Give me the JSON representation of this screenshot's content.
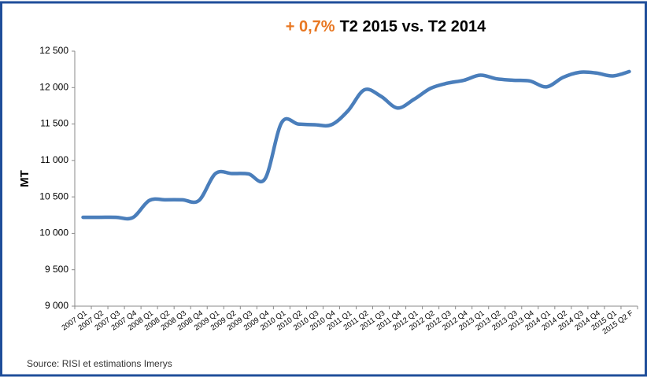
{
  "chart_data": {
    "type": "line",
    "title_highlight": "+ 0,7%",
    "title": "T2 2015 vs. T2 2014",
    "y_label": "MT",
    "source": "Source: RISI et estimations Imerys",
    "categories": [
      "2007 Q1",
      "2007 Q2",
      "2007 Q3",
      "2007 Q4",
      "2008 Q1",
      "2008 Q2",
      "2008 Q3",
      "2008 Q4",
      "2009 Q1",
      "2009 Q2",
      "2009 Q3",
      "2009 Q4",
      "2010 Q1",
      "2010 Q2",
      "2010 Q3",
      "2010 Q4",
      "2011 Q1",
      "2011 Q2",
      "2011 Q3",
      "2011 Q4",
      "2012 Q1",
      "2012 Q2",
      "2012 Q3",
      "2012 Q4",
      "2013 Q1",
      "2013 Q2",
      "2013 Q3",
      "2013 Q4",
      "2014 Q1",
      "2014 Q2",
      "2014 Q3",
      "2014 Q4",
      "2015 Q1",
      "2015 Q2 F"
    ],
    "series": [
      {
        "name": "MT",
        "color": "#4a7ebb",
        "values": [
          10220,
          10220,
          10220,
          10215,
          10450,
          10460,
          10460,
          10450,
          10820,
          10820,
          10815,
          10750,
          11520,
          11500,
          11490,
          11490,
          11680,
          11970,
          11880,
          11720,
          11840,
          11990,
          12060,
          12100,
          12170,
          12120,
          12100,
          12090,
          12010,
          12140,
          12210,
          12200,
          12160,
          12220
        ]
      }
    ],
    "ylim": [
      9000,
      12500
    ],
    "yticks": [
      {
        "value": 9000,
        "label": "9 000"
      },
      {
        "value": 9500,
        "label": "9 500"
      },
      {
        "value": 10000,
        "label": "10 000"
      },
      {
        "value": 10500,
        "label": "10 500"
      },
      {
        "value": 11000,
        "label": "11 000"
      },
      {
        "value": 11500,
        "label": "11 500"
      },
      {
        "value": 12000,
        "label": "12 000"
      },
      {
        "value": 12500,
        "label": "12 500"
      }
    ],
    "title_highlight_color": "#e87722",
    "grid": false
  }
}
